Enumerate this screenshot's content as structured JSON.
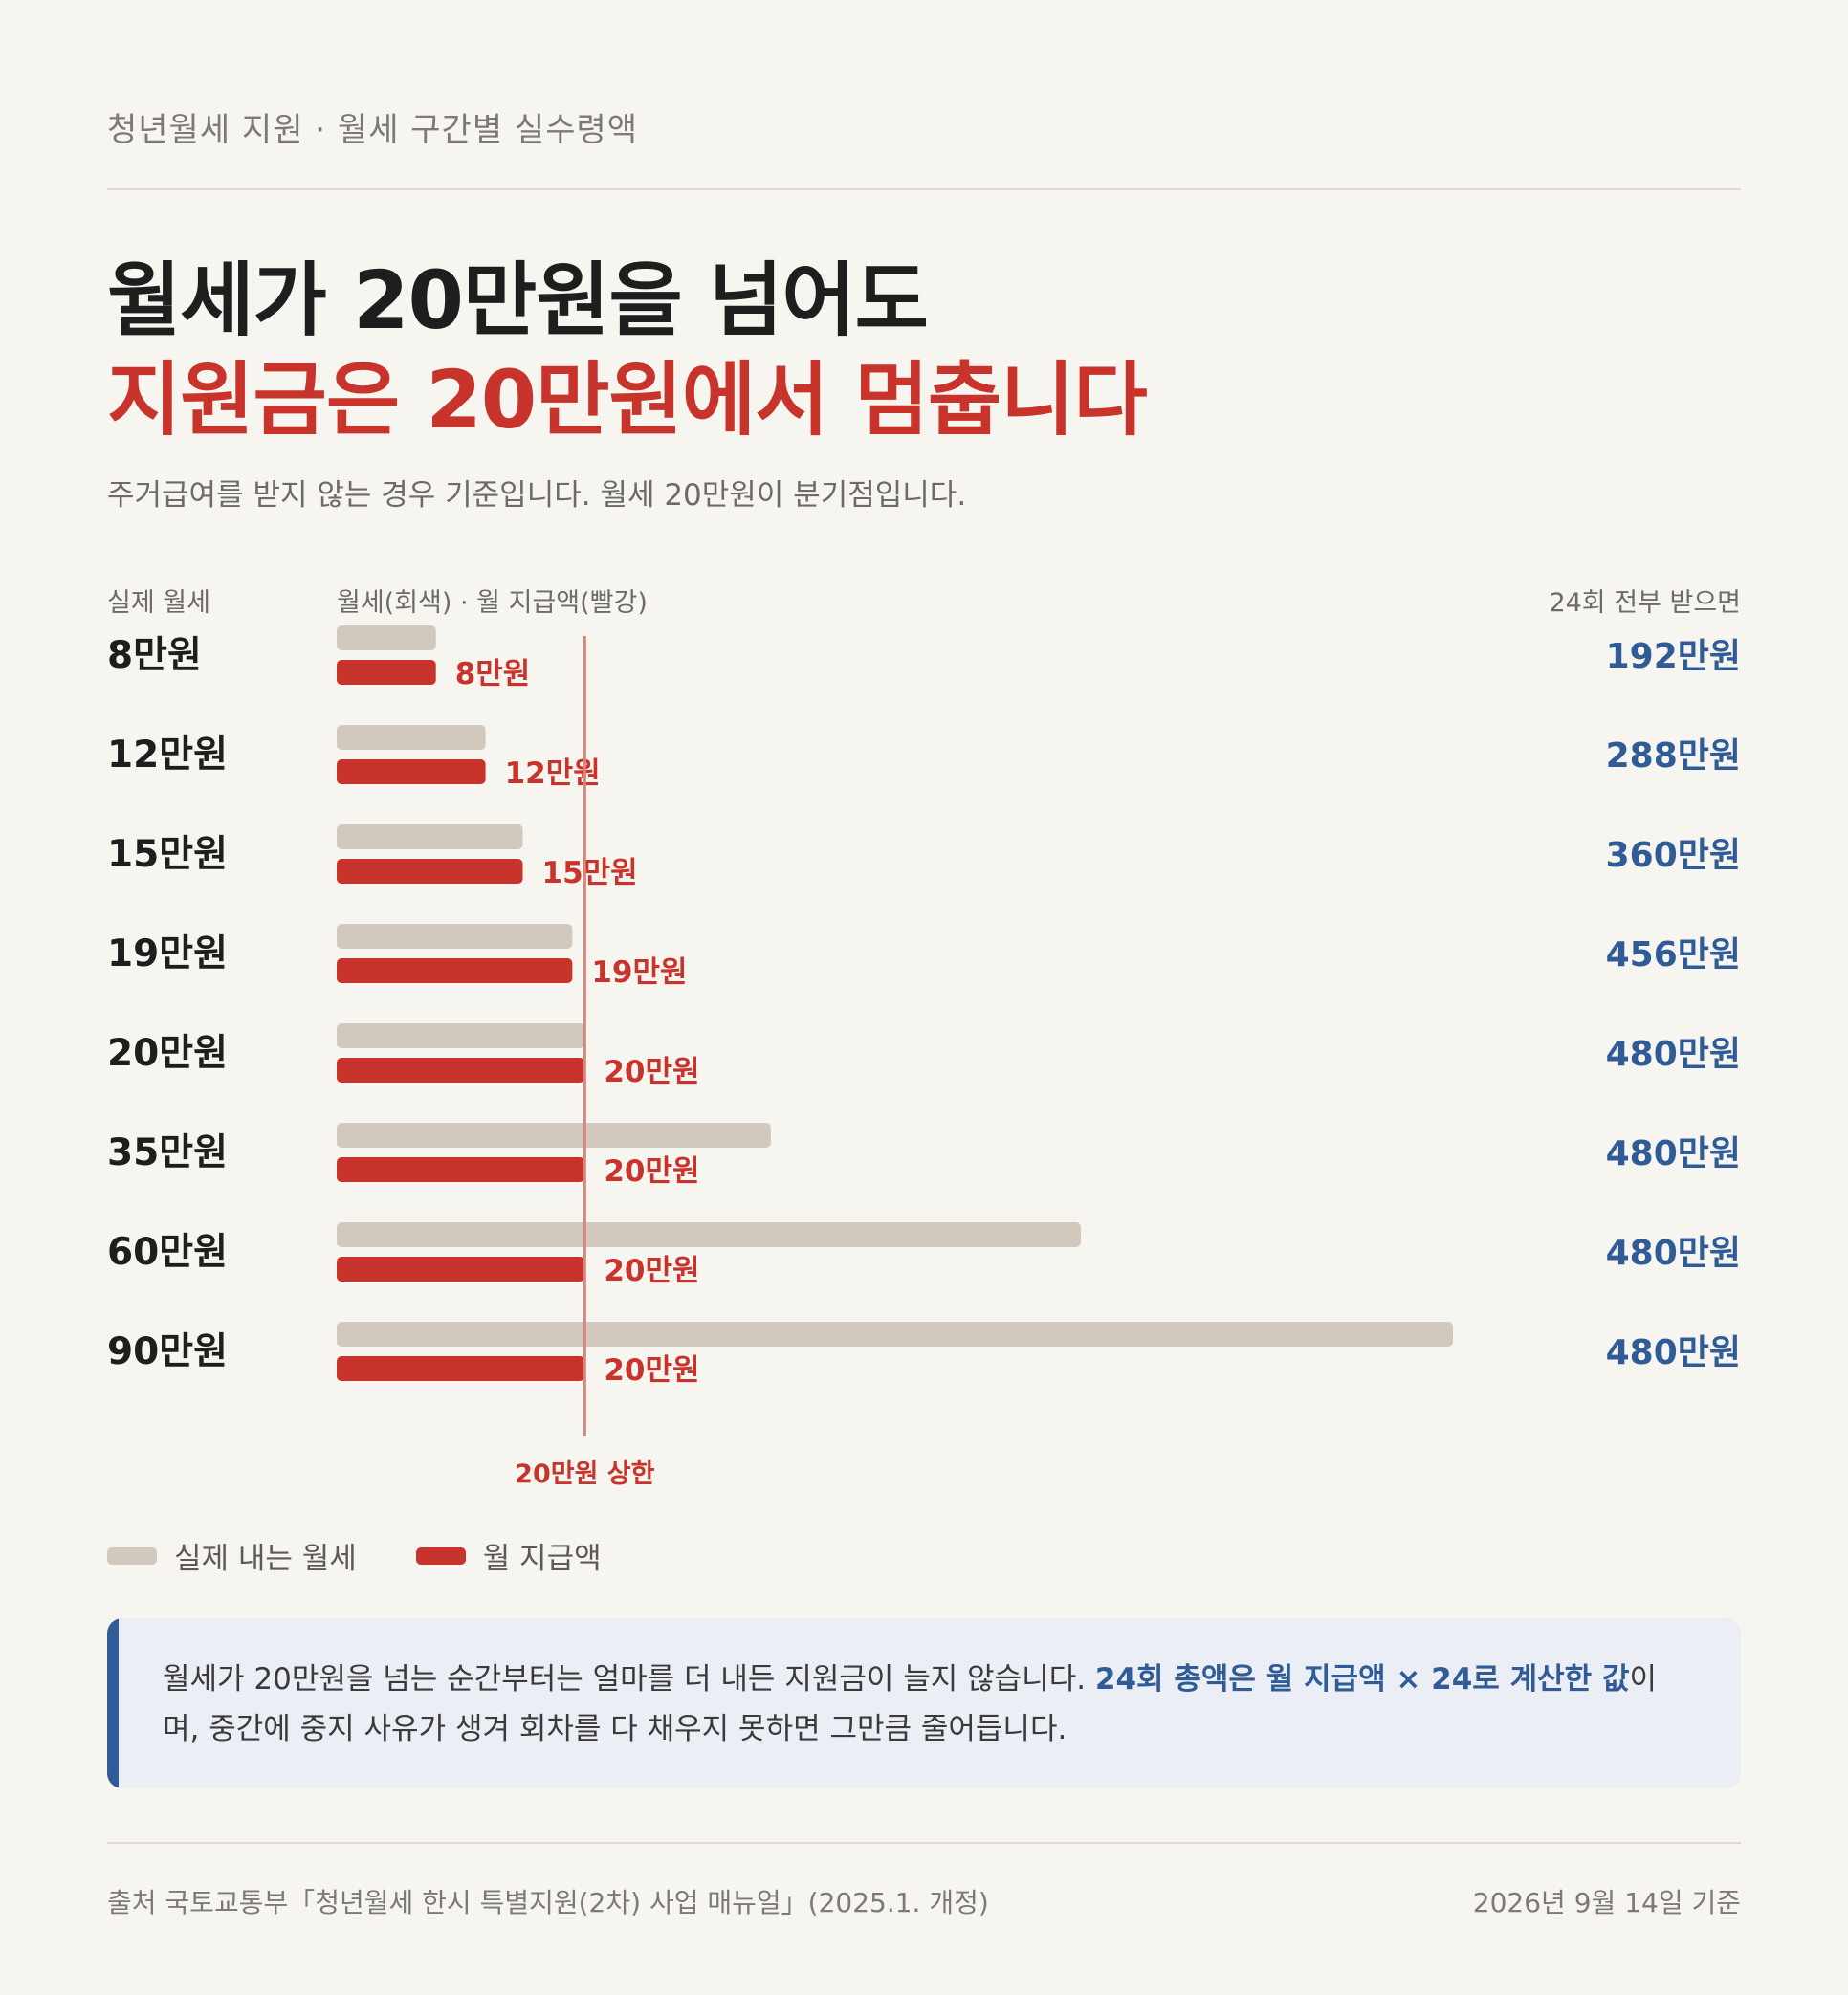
{
  "header": {
    "kicker": "청년월세 지원 · 월세 구간별 실수령액",
    "title_line1": "월세가 20만원을 넘어도",
    "title_line2": "지원금은 20만원에서 멈춥니다",
    "subtitle": "주거급여를 받지 않는 경우 기준입니다. 월세 20만원이 분기점입니다."
  },
  "columns": {
    "left": "실제 월세",
    "middle": "월세(회색) · 월 지급액(빨강)",
    "right": "24회 전부 받으면"
  },
  "colors": {
    "rent_bar": "#d1c9bd",
    "support_bar": "#c8342b",
    "total_text": "#2f5b96",
    "cap_line": "#d9837c"
  },
  "chart_data": {
    "type": "bar",
    "orientation": "horizontal",
    "unit": "만원",
    "categories": [
      "8만원",
      "12만원",
      "15만원",
      "19만원",
      "20만원",
      "35만원",
      "60만원",
      "90만원"
    ],
    "series": [
      {
        "name": "실제 내는 월세",
        "values": [
          8,
          12,
          15,
          19,
          20,
          35,
          60,
          90
        ]
      },
      {
        "name": "월 지급액",
        "values": [
          8,
          12,
          15,
          19,
          20,
          20,
          20,
          20
        ]
      }
    ],
    "support_labels": [
      "8만원",
      "12만원",
      "15만원",
      "19만원",
      "20만원",
      "20만원",
      "20만원",
      "20만원"
    ],
    "totals": [
      "192만원",
      "288만원",
      "360만원",
      "456만원",
      "480만원",
      "480만원",
      "480만원",
      "480만원"
    ],
    "cap_value": 20,
    "cap_label": "20만원 상한",
    "xlim": [
      0,
      90
    ]
  },
  "legend": {
    "rent": "실제 내는 월세",
    "support": "월 지급액"
  },
  "note": {
    "text1": "월세가 20만원을 넘는 순간부터는 얼마를 더 내든 지원금이 늘지 않습니다. ",
    "emphasis": "24회 총액은 월 지급액 × 24로 계산한 값",
    "text2": "이며, 중간에 중지 사유가 생겨 회차를 다 채우지 못하면 그만큼 줄어듭니다."
  },
  "footer": {
    "source": "출처 국토교통부「청년월세 한시 특별지원(2차) 사업 매뉴얼」(2025.1. 개정)",
    "as_of": "2026년 9월 14일 기준"
  }
}
